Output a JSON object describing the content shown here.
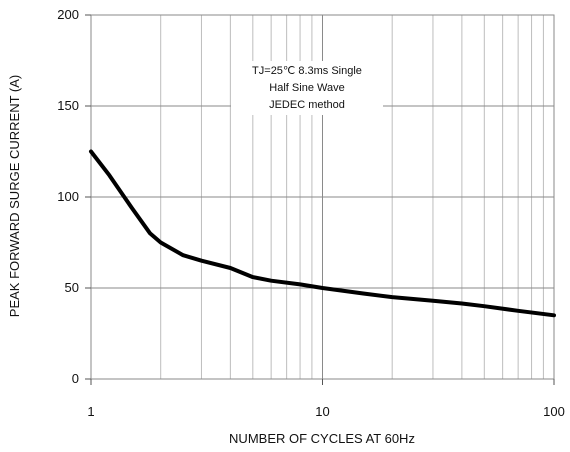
{
  "chart_data": {
    "type": "line",
    "x_scale": "log",
    "y_scale": "linear",
    "xlim": [
      1,
      100
    ],
    "ylim": [
      0,
      200
    ],
    "xlabel": "NUMBER OF CYCLES AT 60Hz",
    "ylabel": "PEAK FORWARD SURGE CURRENT (A)",
    "x_ticks": [
      {
        "value": 1,
        "label": "1"
      },
      {
        "value": 10,
        "label": "10"
      },
      {
        "value": 100,
        "label": "100"
      }
    ],
    "y_ticks": [
      {
        "value": 0,
        "label": "0"
      },
      {
        "value": 50,
        "label": "50"
      },
      {
        "value": 100,
        "label": "100"
      },
      {
        "value": 150,
        "label": "150"
      },
      {
        "value": 200,
        "label": "200"
      }
    ],
    "grid": true,
    "annotation": [
      "TJ=25℃ 8.3ms Single",
      "Half  Sine Wave",
      "JEDEC method"
    ],
    "series": [
      {
        "color": "#000000",
        "points": [
          {
            "x": 1,
            "y": 125
          },
          {
            "x": 1.2,
            "y": 112
          },
          {
            "x": 1.5,
            "y": 94
          },
          {
            "x": 1.8,
            "y": 80
          },
          {
            "x": 2,
            "y": 75
          },
          {
            "x": 2.5,
            "y": 68
          },
          {
            "x": 3,
            "y": 65
          },
          {
            "x": 4,
            "y": 61
          },
          {
            "x": 5,
            "y": 56
          },
          {
            "x": 6,
            "y": 54
          },
          {
            "x": 8,
            "y": 52
          },
          {
            "x": 10,
            "y": 50
          },
          {
            "x": 15,
            "y": 47
          },
          {
            "x": 20,
            "y": 45
          },
          {
            "x": 30,
            "y": 43
          },
          {
            "x": 40,
            "y": 41.5
          },
          {
            "x": 50,
            "y": 40
          },
          {
            "x": 70,
            "y": 37.5
          },
          {
            "x": 100,
            "y": 35
          }
        ]
      }
    ]
  }
}
